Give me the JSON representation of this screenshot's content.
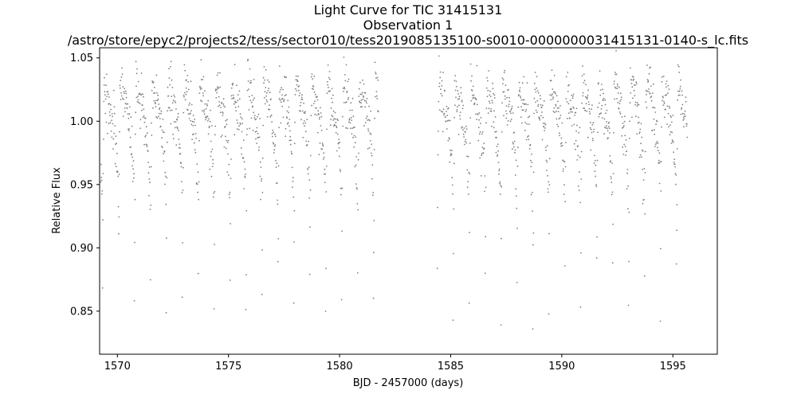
{
  "chart_data": {
    "type": "scatter",
    "title": [
      "Light Curve for TIC 31415131",
      "Observation 1",
      "/astro/store/epyc2/projects2/tess/sector010/tess2019085135100-s0010-0000000031415131-0140-s_lc.fits"
    ],
    "xlabel": "BJD - 2457000 (days)",
    "ylabel": "Relative Flux",
    "xlim": [
      1569.2,
      1597.0
    ],
    "ylim": [
      0.816,
      1.058
    ],
    "xticks": [
      1570,
      1575,
      1580,
      1585,
      1590,
      1595
    ],
    "xtick_labels": [
      "1570",
      "1575",
      "1580",
      "1585",
      "1590",
      "1595"
    ],
    "yticks": [
      0.85,
      0.9,
      0.95,
      1.0,
      1.05
    ],
    "ytick_labels": [
      "0.85",
      "0.90",
      "0.95",
      "1.00",
      "1.05"
    ],
    "grid": false,
    "marker_color": "#808080",
    "series": [
      {
        "segments": [
          [
            1569.25,
            1581.75
          ],
          [
            1584.4,
            1595.65
          ]
        ],
        "cadence_days": 0.0139,
        "period_days": 0.7174,
        "first_minimum": 1570.76,
        "minimum_flux": 0.83,
        "minimum_fraction_of_period": 0.1,
        "maximum_flux": 1.03,
        "flux_scatter": 0.01
      }
    ]
  }
}
